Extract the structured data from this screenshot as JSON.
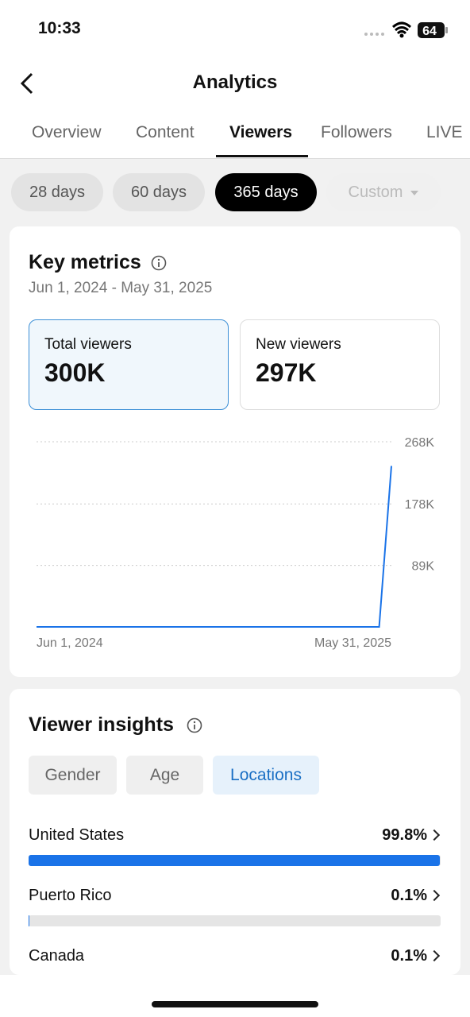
{
  "status_bar": {
    "time": "10:33",
    "battery": "64"
  },
  "header": {
    "title": "Analytics"
  },
  "tabs": {
    "items": [
      "Overview",
      "Content",
      "Viewers",
      "Followers",
      "LIVE"
    ],
    "active": 2
  },
  "ranges": {
    "items": [
      "28 days",
      "60 days",
      "365 days",
      "Custom"
    ],
    "active": 2
  },
  "key_metrics": {
    "title": "Key metrics",
    "date_range": "Jun 1, 2024 - May 31, 2025",
    "cards": [
      {
        "label": "Total viewers",
        "value": "300K"
      },
      {
        "label": "New viewers",
        "value": "297K"
      }
    ],
    "chart": {
      "type": "line",
      "color": "#1a73e8",
      "categories": [
        "Jun 1, 2024",
        null,
        null,
        null,
        null,
        null,
        null,
        null,
        null,
        null,
        null,
        null,
        null,
        null,
        null,
        null,
        null,
        null,
        null,
        null,
        null,
        null,
        null,
        null,
        null,
        null,
        null,
        null,
        null,
        "May 31, 2025"
      ],
      "values": [
        0,
        0,
        0,
        0,
        0,
        0,
        0,
        0,
        0,
        0,
        0,
        0,
        0,
        0,
        0,
        0,
        0,
        0,
        0,
        0,
        0,
        0,
        0,
        0,
        0,
        0,
        0,
        0,
        0,
        233000
      ],
      "ylim": [
        0,
        268000
      ],
      "yticks": [
        {
          "value": 89000,
          "label": "89K"
        },
        {
          "value": 178000,
          "label": "178K"
        },
        {
          "value": 268000,
          "label": "268K"
        }
      ],
      "grid": true
    }
  },
  "insights": {
    "title": "Viewer insights",
    "tabs": [
      "Gender",
      "Age",
      "Locations"
    ],
    "active": 2,
    "locations": {
      "names": [
        "United States",
        "Puerto Rico",
        "Canada"
      ],
      "values": [
        99.8,
        0.1,
        0.1
      ],
      "value_labels": [
        "99.8%",
        "0.1%",
        "0.1%"
      ],
      "xlim": [
        0,
        100
      ],
      "color": "#1a73e8"
    }
  }
}
